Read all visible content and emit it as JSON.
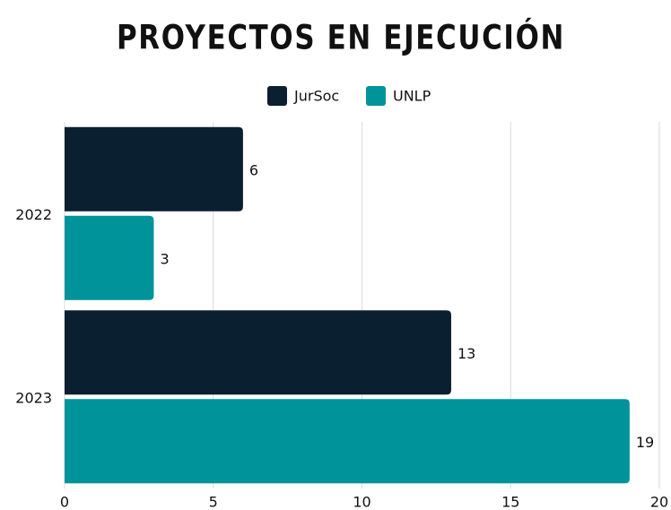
{
  "chart_data": {
    "type": "bar",
    "orientation": "horizontal",
    "title": "PROYECTOS EN EJECUCIÓN",
    "categories": [
      "2022",
      "2023"
    ],
    "series": [
      {
        "name": "JurSoc",
        "color": "#0a1f30",
        "values": [
          6,
          13
        ]
      },
      {
        "name": "UNLP",
        "color": "#00939a",
        "values": [
          3,
          19
        ]
      }
    ],
    "xlim": [
      0,
      20
    ],
    "xticks": [
      0,
      5,
      10,
      15,
      20
    ],
    "grid": true,
    "legend": "top"
  }
}
